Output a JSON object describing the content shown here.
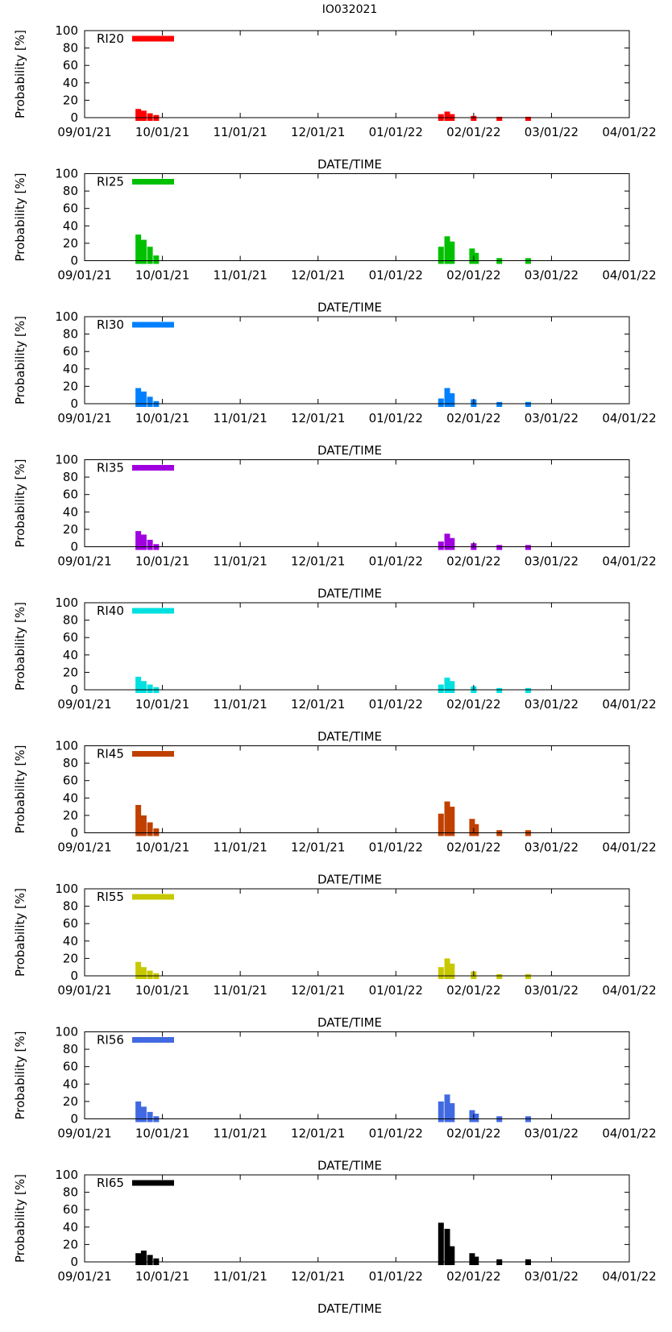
{
  "figure_title": "IO032021",
  "chart_data": [
    {
      "type": "bar",
      "title": "IO032021",
      "legend": "RI20",
      "color": "#ff0000",
      "ylabel": "Probability [%]",
      "xlabel": "DATE/TIME",
      "ylim": [
        0,
        100
      ],
      "xticks": [
        "09/01/21",
        "10/01/21",
        "11/01/21",
        "12/01/21",
        "01/01/22",
        "02/01/22",
        "03/01/22",
        "04/01/22"
      ],
      "points": [
        [
          0.69,
          10
        ],
        [
          0.76,
          8
        ],
        [
          0.84,
          5
        ],
        [
          0.92,
          3
        ],
        [
          4.58,
          4
        ],
        [
          4.66,
          7
        ],
        [
          4.72,
          4
        ],
        [
          5.0,
          2
        ],
        [
          5.33,
          1
        ],
        [
          5.7,
          1
        ]
      ]
    },
    {
      "type": "bar",
      "legend": "RI25",
      "color": "#00c000",
      "ylabel": "Probability [%]",
      "xlabel": "DATE/TIME",
      "ylim": [
        0,
        100
      ],
      "xticks": [
        "09/01/21",
        "10/01/21",
        "11/01/21",
        "12/01/21",
        "01/01/22",
        "02/01/22",
        "03/01/22",
        "04/01/22"
      ],
      "points": [
        [
          0.69,
          30
        ],
        [
          0.76,
          24
        ],
        [
          0.84,
          16
        ],
        [
          0.92,
          6
        ],
        [
          4.58,
          16
        ],
        [
          4.66,
          28
        ],
        [
          4.72,
          22
        ],
        [
          4.98,
          14
        ],
        [
          5.03,
          9
        ],
        [
          5.33,
          3
        ],
        [
          5.7,
          3
        ]
      ]
    },
    {
      "type": "bar",
      "legend": "RI30",
      "color": "#0080ff",
      "ylabel": "Probability [%]",
      "xlabel": "DATE/TIME",
      "ylim": [
        0,
        100
      ],
      "xticks": [
        "09/01/21",
        "10/01/21",
        "11/01/21",
        "12/01/21",
        "01/01/22",
        "02/01/22",
        "03/01/22",
        "04/01/22"
      ],
      "points": [
        [
          0.69,
          18
        ],
        [
          0.76,
          14
        ],
        [
          0.84,
          8
        ],
        [
          0.92,
          3
        ],
        [
          4.58,
          6
        ],
        [
          4.66,
          18
        ],
        [
          4.72,
          12
        ],
        [
          5.0,
          5
        ],
        [
          5.33,
          2
        ],
        [
          5.7,
          2
        ]
      ]
    },
    {
      "type": "bar",
      "legend": "RI35",
      "color": "#a000e0",
      "ylabel": "Probability [%]",
      "xlabel": "DATE/TIME",
      "ylim": [
        0,
        100
      ],
      "xticks": [
        "09/01/21",
        "10/01/21",
        "11/01/21",
        "12/01/21",
        "01/01/22",
        "02/01/22",
        "03/01/22",
        "04/01/22"
      ],
      "points": [
        [
          0.69,
          18
        ],
        [
          0.76,
          14
        ],
        [
          0.84,
          8
        ],
        [
          0.92,
          3
        ],
        [
          4.58,
          6
        ],
        [
          4.66,
          15
        ],
        [
          4.72,
          10
        ],
        [
          5.0,
          4
        ],
        [
          5.33,
          2
        ],
        [
          5.7,
          2
        ]
      ]
    },
    {
      "type": "bar",
      "legend": "RI40",
      "color": "#00e0e0",
      "ylabel": "Probability [%]",
      "xlabel": "DATE/TIME",
      "ylim": [
        0,
        100
      ],
      "xticks": [
        "09/01/21",
        "10/01/21",
        "11/01/21",
        "12/01/21",
        "01/01/22",
        "02/01/22",
        "03/01/22",
        "04/01/22"
      ],
      "points": [
        [
          0.69,
          15
        ],
        [
          0.76,
          10
        ],
        [
          0.84,
          6
        ],
        [
          0.92,
          3
        ],
        [
          4.58,
          6
        ],
        [
          4.66,
          14
        ],
        [
          4.72,
          10
        ],
        [
          5.0,
          4
        ],
        [
          5.33,
          2
        ],
        [
          5.7,
          2
        ]
      ]
    },
    {
      "type": "bar",
      "legend": "RI45",
      "color": "#c04000",
      "ylabel": "Probability [%]",
      "xlabel": "DATE/TIME",
      "ylim": [
        0,
        100
      ],
      "xticks": [
        "09/01/21",
        "10/01/21",
        "11/01/21",
        "12/01/21",
        "01/01/22",
        "02/01/22",
        "03/01/22",
        "04/01/22"
      ],
      "points": [
        [
          0.69,
          32
        ],
        [
          0.76,
          20
        ],
        [
          0.84,
          12
        ],
        [
          0.92,
          5
        ],
        [
          4.58,
          22
        ],
        [
          4.66,
          36
        ],
        [
          4.72,
          30
        ],
        [
          4.98,
          16
        ],
        [
          5.03,
          10
        ],
        [
          5.33,
          3
        ],
        [
          5.7,
          3
        ]
      ]
    },
    {
      "type": "bar",
      "legend": "RI55",
      "color": "#c8c800",
      "ylabel": "Probability [%]",
      "xlabel": "DATE/TIME",
      "ylim": [
        0,
        100
      ],
      "xticks": [
        "09/01/21",
        "10/01/21",
        "11/01/21",
        "12/01/21",
        "01/01/22",
        "02/01/22",
        "03/01/22",
        "04/01/22"
      ],
      "points": [
        [
          0.69,
          16
        ],
        [
          0.76,
          10
        ],
        [
          0.84,
          6
        ],
        [
          0.92,
          3
        ],
        [
          4.58,
          10
        ],
        [
          4.66,
          20
        ],
        [
          4.72,
          14
        ],
        [
          5.0,
          5
        ],
        [
          5.33,
          2
        ],
        [
          5.7,
          2
        ]
      ]
    },
    {
      "type": "bar",
      "legend": "RI56",
      "color": "#4169e1",
      "ylabel": "Probability [%]",
      "xlabel": "DATE/TIME",
      "ylim": [
        0,
        100
      ],
      "xticks": [
        "09/01/21",
        "10/01/21",
        "11/01/21",
        "12/01/21",
        "01/01/22",
        "02/01/22",
        "03/01/22",
        "04/01/22"
      ],
      "points": [
        [
          0.69,
          20
        ],
        [
          0.76,
          14
        ],
        [
          0.84,
          8
        ],
        [
          0.92,
          3
        ],
        [
          4.58,
          20
        ],
        [
          4.66,
          28
        ],
        [
          4.72,
          18
        ],
        [
          4.98,
          10
        ],
        [
          5.03,
          6
        ],
        [
          5.33,
          3
        ],
        [
          5.7,
          3
        ]
      ]
    },
    {
      "type": "bar",
      "legend": "RI65",
      "color": "#000000",
      "ylabel": "Probability [%]",
      "xlabel": "DATE/TIME",
      "ylim": [
        0,
        100
      ],
      "xticks": [
        "09/01/21",
        "10/01/21",
        "11/01/21",
        "12/01/21",
        "01/01/22",
        "02/01/22",
        "03/01/22",
        "04/01/22"
      ],
      "points": [
        [
          0.69,
          10
        ],
        [
          0.76,
          13
        ],
        [
          0.84,
          8
        ],
        [
          0.92,
          4
        ],
        [
          4.58,
          45
        ],
        [
          4.66,
          38
        ],
        [
          4.72,
          18
        ],
        [
          4.98,
          10
        ],
        [
          5.03,
          6
        ],
        [
          5.33,
          3
        ],
        [
          5.7,
          3
        ]
      ]
    }
  ]
}
